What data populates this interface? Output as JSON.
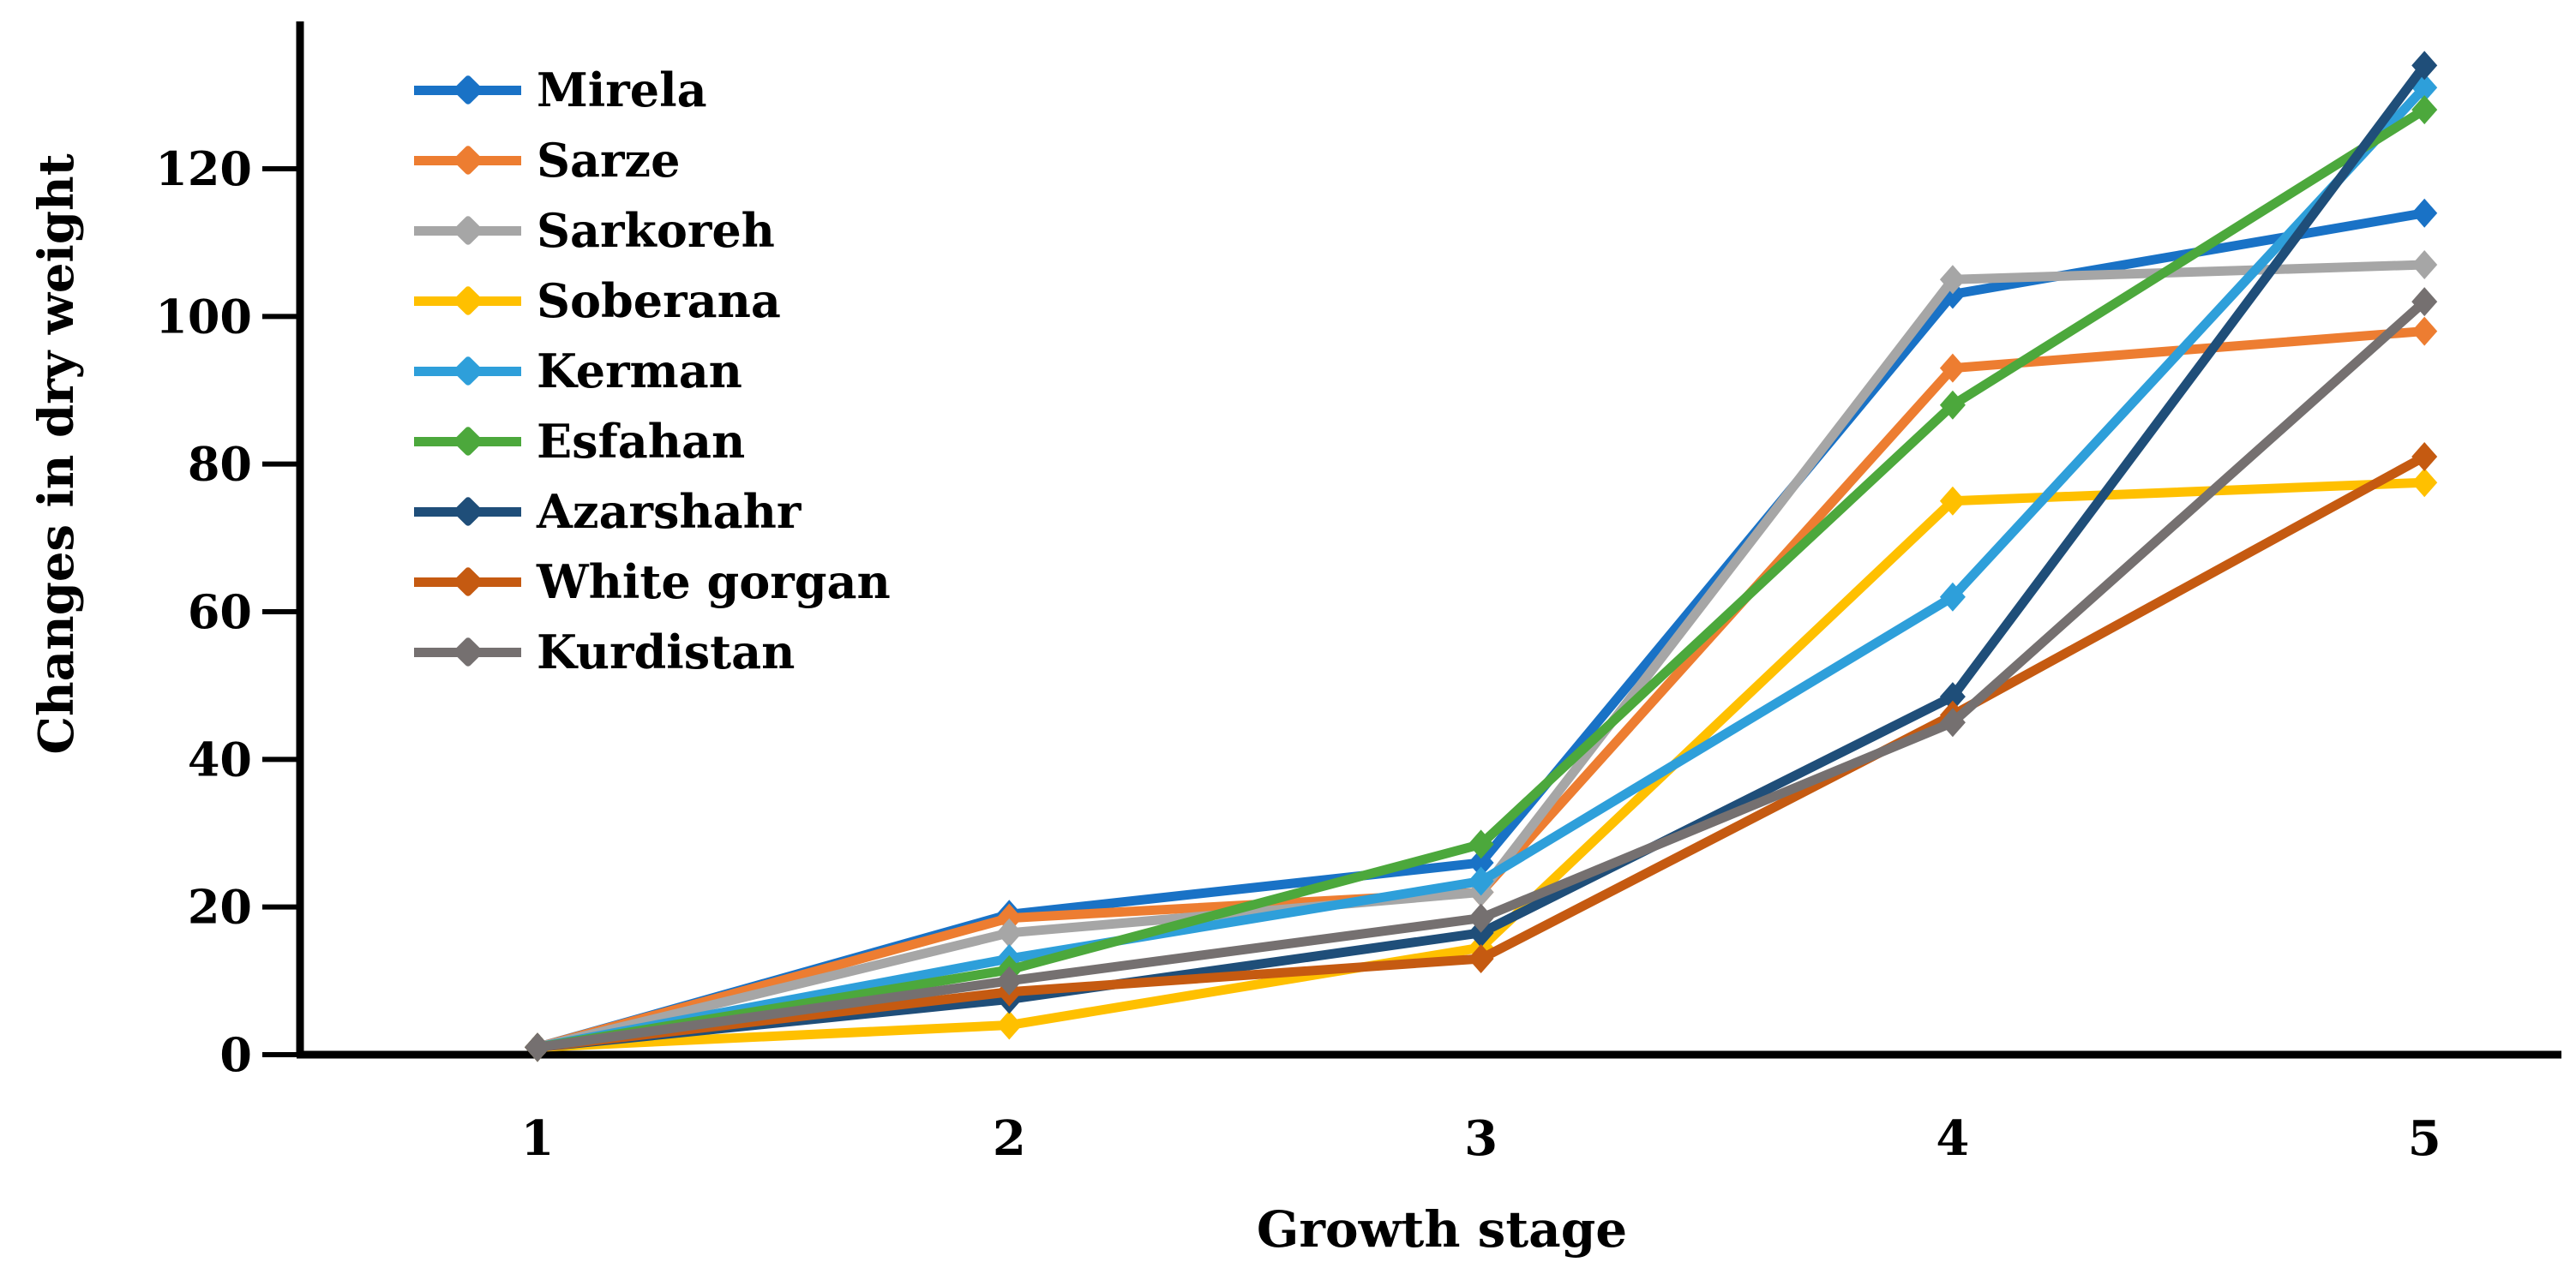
{
  "figure": {
    "background": "#ffffff",
    "axis_color": "#000000",
    "text_color": "#000000"
  },
  "chart_data": {
    "type": "line",
    "title": "",
    "xlabel": "Growth stage",
    "ylabel": "Changes in dry weight",
    "categories": [
      "1",
      "2",
      "3",
      "4",
      "5"
    ],
    "x_values": [
      1,
      2,
      3,
      4,
      5
    ],
    "yticks": [
      "0",
      "20",
      "40",
      "60",
      "80",
      "100",
      "120"
    ],
    "ytick_values": [
      0,
      20,
      40,
      60,
      80,
      100,
      120
    ],
    "ylim": [
      0,
      140
    ],
    "grid": false,
    "legend_position": "upper-left-inside",
    "marker": "diamond",
    "series": [
      {
        "name": "Mirela",
        "color": "#1972C6",
        "values": [
          1,
          19,
          26,
          103,
          114
        ]
      },
      {
        "name": "Sarze",
        "color": "#ED7D31",
        "values": [
          1,
          18.5,
          22,
          93,
          98
        ]
      },
      {
        "name": "Sarkoreh",
        "color": "#A6A6A6",
        "values": [
          1,
          16.5,
          22,
          105,
          107
        ]
      },
      {
        "name": "Soberana",
        "color": "#FFC000",
        "values": [
          1,
          4,
          14.5,
          75,
          77.5
        ]
      },
      {
        "name": "Kerman",
        "color": "#2E9FDA",
        "values": [
          1,
          13,
          23.5,
          62,
          131
        ]
      },
      {
        "name": "Esfahan",
        "color": "#4CA83C",
        "values": [
          1,
          11.5,
          28.5,
          88,
          128
        ]
      },
      {
        "name": "Azarshahr",
        "color": "#1F4E79",
        "values": [
          1,
          7.5,
          16.5,
          48.5,
          134
        ]
      },
      {
        "name": "White gorgan",
        "color": "#C55A11",
        "values": [
          1,
          8.5,
          13,
          46,
          81
        ]
      },
      {
        "name": "Kurdistan",
        "color": "#757070",
        "values": [
          1,
          10,
          18.5,
          45,
          102
        ]
      }
    ]
  }
}
